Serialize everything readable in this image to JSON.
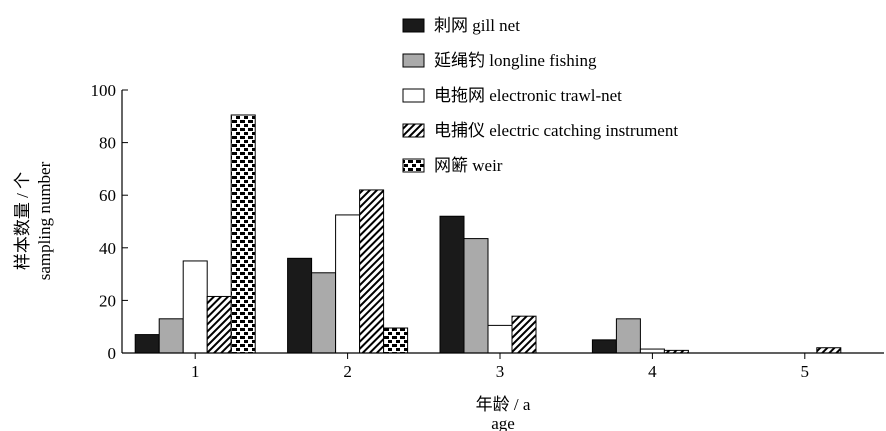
{
  "chart_data": {
    "type": "bar",
    "categories": [
      "1",
      "2",
      "3",
      "4",
      "5"
    ],
    "series": [
      {
        "name": "刺网 gill net",
        "pattern": "solid-black",
        "values": [
          7,
          36,
          52,
          5,
          0
        ]
      },
      {
        "name": "延绳钓 longline fishing",
        "pattern": "solid-gray",
        "values": [
          13,
          30.5,
          43.5,
          13,
          0
        ]
      },
      {
        "name": "电拖网 electronic trawl-net",
        "pattern": "white",
        "values": [
          35,
          52.5,
          10.5,
          1.5,
          0
        ]
      },
      {
        "name": "电捕仪 electric catching instrument",
        "pattern": "diagonal-hatch",
        "values": [
          21.5,
          62,
          14,
          1,
          2
        ]
      },
      {
        "name": "网簖 weir",
        "pattern": "checker",
        "values": [
          90.5,
          9.5,
          0,
          0,
          0
        ]
      }
    ],
    "ylim": [
      0,
      100
    ],
    "yticks": [
      "0",
      "20",
      "40",
      "60",
      "80",
      "100"
    ],
    "xlabel_cn": "年龄 / a",
    "xlabel_en": "age",
    "ylabel_cn": "样本数量 / 个",
    "ylabel_en": "sampling number",
    "legend_position": "top-center",
    "colors": {
      "gill_net": "#1a1a1a",
      "longline": "#aaaaaa",
      "white": "#ffffff"
    }
  }
}
